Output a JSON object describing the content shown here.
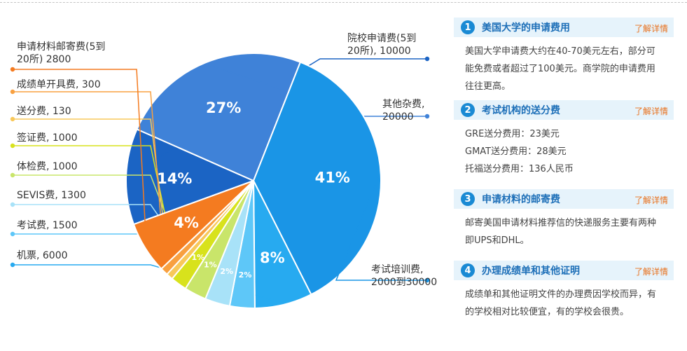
{
  "chart_data": {
    "type": "pie",
    "slices": [
      {
        "name": "院校申请费(5到20所)",
        "label_lines": [
          "院校申请费(5到",
          "20所), 10000"
        ],
        "value": 10000,
        "percent_label": "14%",
        "color": "#1b64c4"
      },
      {
        "name": "其他杂费",
        "label_lines": [
          "其他杂费,",
          "20000"
        ],
        "value": 20000,
        "percent_label": "27%",
        "color": "#3f82d8"
      },
      {
        "name": "考试培训费",
        "label_lines": [
          "考试培训费,",
          "2000到30000"
        ],
        "value": 30000,
        "percent_label": "41%",
        "color": "#1a95e6"
      },
      {
        "name": "机票",
        "label_lines": [
          "机票, 6000"
        ],
        "value": 6000,
        "percent_label": "8%",
        "color": "#27aaf0"
      },
      {
        "name": "考试费",
        "label_lines": [
          "考试费, 1500"
        ],
        "value": 1500,
        "percent_label": "2%",
        "color": "#5ec7f8"
      },
      {
        "name": "SEVIS费",
        "label_lines": [
          "SEVIS费, 1300"
        ],
        "value": 1300,
        "percent_label": "2%",
        "color": "#a8e2f8"
      },
      {
        "name": "体检费",
        "label_lines": [
          "体检费, 1000"
        ],
        "value": 1000,
        "percent_label": "1%",
        "color": "#c9e56a"
      },
      {
        "name": "签证费",
        "label_lines": [
          "签证费, 1000"
        ],
        "value": 1000,
        "percent_label": "1%",
        "color": "#d8e21c"
      },
      {
        "name": "送分费",
        "label_lines": [
          "送分费, 130"
        ],
        "value": 130,
        "percent_label": "",
        "color": "#f8c85a"
      },
      {
        "name": "成绩单开具费",
        "label_lines": [
          "成绩单开具费, 300"
        ],
        "value": 300,
        "percent_label": "",
        "color": "#f8a040"
      },
      {
        "name": "申请材料邮寄费(5到20所)",
        "label_lines": [
          "申请材料邮寄费(5到",
          "20所)   2800"
        ],
        "value": 2800,
        "percent_label": "4%",
        "color": "#f47b20"
      }
    ]
  },
  "panel": {
    "sections": [
      {
        "num": "1",
        "title": "美国大学的申请费用",
        "more": "了解详情",
        "lines": [
          "美国大学申请费大约在40-70美元左右，部分可",
          "能免费或者超过了100美元。商学院的申请费用",
          "往往更高。"
        ]
      },
      {
        "num": "2",
        "title": "考试机构的送分费",
        "more": "了解详情",
        "lines": [
          "GRE送分费用：23美元",
          "GMAT送分费用：28美元",
          "托福送分费用：136人民币"
        ]
      },
      {
        "num": "3",
        "title": "申请材料的邮寄费",
        "more": "了解详情",
        "lines": [
          "邮寄美国申请材料推荐信的快递服务主要有两种",
          "即UPS和DHL。"
        ]
      },
      {
        "num": "4",
        "title": "办理成绩单和其他证明",
        "more": "了解详情",
        "lines": [
          "成绩单和其他证明文件的办理费因学校而异，有",
          "的学校相对比较便宜，有的学校会很贵。"
        ]
      }
    ]
  }
}
